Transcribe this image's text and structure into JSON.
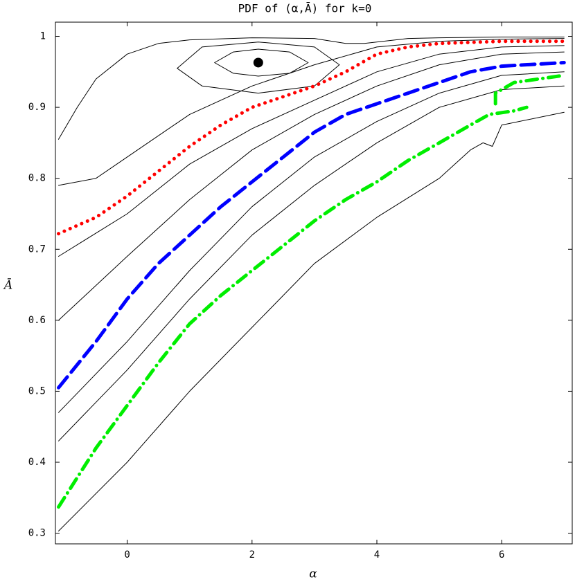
{
  "chart_data": {
    "type": "contour",
    "title": "PDF of (α,Ā) for k=0",
    "x_label": "α",
    "y_label": "Ā",
    "xlim": [
      -1.15,
      7.13
    ],
    "ylim": [
      0.285,
      1.02
    ],
    "xticks": [
      0,
      2,
      4,
      6
    ],
    "yticks": [
      0.3,
      0.4,
      0.5,
      0.6,
      0.7,
      0.8,
      0.9,
      1
    ],
    "series": [
      {
        "color": "#000000",
        "dash": "solid",
        "width": 1,
        "x": [
          -1.1,
          0,
          1,
          2,
          3,
          4,
          5,
          5.5,
          5.7,
          5.85,
          6,
          7
        ],
        "values": [
          0.303,
          0.4,
          0.5,
          0.59,
          0.68,
          0.745,
          0.8,
          0.84,
          0.85,
          0.845,
          0.875,
          0.893
        ]
      },
      {
        "color": "#000000",
        "dash": "solid",
        "width": 1,
        "x": [
          -1.1,
          0,
          1,
          2,
          3,
          4,
          5,
          6,
          7
        ],
        "values": [
          0.43,
          0.53,
          0.63,
          0.72,
          0.79,
          0.85,
          0.9,
          0.925,
          0.93
        ]
      },
      {
        "color": "#000000",
        "dash": "solid",
        "width": 1,
        "x": [
          -1.1,
          0,
          1,
          2,
          3,
          4,
          5,
          6,
          7
        ],
        "values": [
          0.47,
          0.57,
          0.67,
          0.76,
          0.83,
          0.88,
          0.92,
          0.945,
          0.95
        ]
      },
      {
        "color": "#000000",
        "dash": "solid",
        "width": 1,
        "x": [
          -1.1,
          0,
          1,
          2,
          3,
          4,
          5,
          6,
          7
        ],
        "values": [
          0.6,
          0.69,
          0.77,
          0.84,
          0.89,
          0.93,
          0.96,
          0.975,
          0.978
        ]
      },
      {
        "color": "#000000",
        "dash": "solid",
        "width": 1,
        "x": [
          -1.1,
          0,
          1,
          2,
          3,
          4,
          5,
          6,
          7
        ],
        "values": [
          0.69,
          0.75,
          0.82,
          0.87,
          0.91,
          0.95,
          0.975,
          0.985,
          0.987
        ]
      },
      {
        "color": "#000000",
        "dash": "solid",
        "width": 1,
        "x": [
          -1.1,
          -0.5,
          0,
          1,
          2,
          3,
          4,
          5,
          6,
          7
        ],
        "values": [
          0.79,
          0.8,
          0.83,
          0.89,
          0.93,
          0.96,
          0.985,
          0.993,
          0.996,
          0.997
        ]
      },
      {
        "color": "#000000",
        "dash": "solid",
        "width": 1,
        "x": [
          -1.1,
          -0.8,
          -0.5,
          0,
          0.5,
          1,
          2,
          3,
          3.5,
          3.8,
          4.5,
          5,
          6,
          7
        ],
        "values": [
          0.855,
          0.9,
          0.94,
          0.975,
          0.99,
          0.995,
          0.998,
          0.997,
          0.99,
          0.99,
          0.997,
          0.998,
          0.999,
          0.999
        ]
      },
      {
        "color": "#000000",
        "dash": "solid",
        "width": 1,
        "x": [
          0.8,
          1.2,
          2.1,
          3.0,
          3.4,
          3.0,
          2.1,
          1.2,
          0.8
        ],
        "values": [
          0.955,
          0.985,
          0.992,
          0.985,
          0.96,
          0.93,
          0.92,
          0.93,
          0.955
        ]
      },
      {
        "color": "#000000",
        "dash": "solid",
        "width": 1,
        "x": [
          1.4,
          1.7,
          2.1,
          2.6,
          2.9,
          2.6,
          2.1,
          1.7,
          1.4
        ],
        "values": [
          0.963,
          0.978,
          0.982,
          0.978,
          0.963,
          0.948,
          0.944,
          0.948,
          0.963
        ]
      },
      {
        "color": "#ff0000",
        "dash": "dotted",
        "width": 5,
        "x": [
          -1.1,
          -0.5,
          0,
          0.5,
          1,
          1.5,
          2,
          2.5,
          3,
          3.5,
          4,
          4.5,
          5,
          6,
          7
        ],
        "values": [
          0.722,
          0.745,
          0.775,
          0.81,
          0.845,
          0.875,
          0.9,
          0.915,
          0.93,
          0.95,
          0.975,
          0.985,
          0.99,
          0.993,
          0.993
        ]
      },
      {
        "color": "#0000ff",
        "dash": "dashed",
        "width": 5,
        "x": [
          -1.1,
          -0.5,
          0,
          0.5,
          1,
          1.5,
          2,
          2.5,
          3,
          3.5,
          4,
          4.5,
          5,
          5.5,
          6,
          7
        ],
        "values": [
          0.505,
          0.57,
          0.63,
          0.68,
          0.72,
          0.76,
          0.795,
          0.83,
          0.865,
          0.89,
          0.905,
          0.92,
          0.935,
          0.95,
          0.958,
          0.963
        ]
      },
      {
        "color": "#00ee00",
        "dash": "dashdot",
        "width": 5,
        "x": [
          -1.1,
          -0.5,
          0,
          0.5,
          1,
          1.5,
          2,
          2.5,
          3,
          3.5,
          4,
          4.5,
          5,
          5.5,
          5.8,
          6.2,
          6.4,
          null,
          5.9,
          5.9,
          6.2,
          7
        ],
        "values": [
          0.337,
          0.42,
          0.48,
          0.54,
          0.595,
          0.635,
          0.67,
          0.705,
          0.74,
          0.77,
          0.795,
          0.825,
          0.85,
          0.875,
          0.89,
          0.895,
          0.9,
          null,
          0.905,
          0.92,
          0.935,
          0.945
        ]
      }
    ],
    "points": {
      "color": "#000000",
      "x": [
        2.1
      ],
      "values": [
        0.963
      ]
    }
  }
}
